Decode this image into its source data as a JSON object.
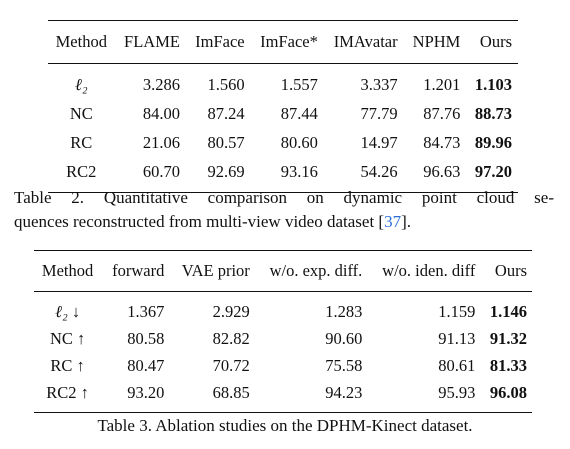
{
  "table2": {
    "headers": [
      "Method",
      "FLAME",
      "ImFace",
      "ImFace*",
      "IMAvatar",
      "NPHM",
      "Ours"
    ],
    "rows": [
      {
        "method": "ℓ₂",
        "values": [
          "3.286",
          "1.560",
          "1.557",
          "3.337",
          "1.201"
        ],
        "ours": "1.103"
      },
      {
        "method": "NC",
        "values": [
          "84.00",
          "87.24",
          "87.44",
          "77.79",
          "87.76"
        ],
        "ours": "88.73"
      },
      {
        "method": "RC",
        "values": [
          "21.06",
          "80.57",
          "80.60",
          "14.97",
          "84.73"
        ],
        "ours": "89.96"
      },
      {
        "method": "RC2",
        "values": [
          "60.70",
          "92.69",
          "93.16",
          "54.26",
          "96.63"
        ],
        "ours": "97.20"
      }
    ],
    "caption_line1": "Table 2.  Quantitative comparison on dynamic point cloud se-",
    "caption_line2_pre": "quences reconstructed from multi-view video dataset [",
    "caption_cite": "37",
    "caption_line2_post": "]."
  },
  "table3": {
    "headers": [
      "Method",
      "forward",
      "VAE prior",
      "w/o. exp. diff.",
      "w/o. iden. diff",
      "Ours"
    ],
    "rows": [
      {
        "method": "ℓ₂ ↓",
        "values": [
          "1.367",
          "2.929",
          "1.283",
          "1.159"
        ],
        "ours": "1.146"
      },
      {
        "method": "NC ↑",
        "values": [
          "80.58",
          "82.82",
          "90.60",
          "91.13"
        ],
        "ours": "91.32"
      },
      {
        "method": "RC ↑",
        "values": [
          "80.47",
          "70.72",
          "75.58",
          "80.61"
        ],
        "ours": "81.33"
      },
      {
        "method": "RC2 ↑",
        "values": [
          "93.20",
          "68.85",
          "94.23",
          "95.93"
        ],
        "ours": "96.08"
      }
    ],
    "caption": "Table 3. Ablation studies on the DPHM-Kinect dataset."
  },
  "colors": {
    "text": "#111111",
    "citation": "#2a6fd6"
  }
}
